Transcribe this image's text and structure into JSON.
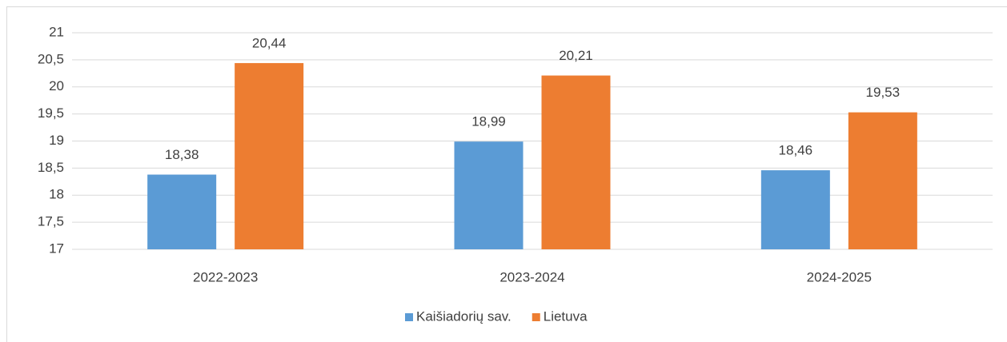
{
  "chart_data": {
    "type": "bar",
    "categories": [
      "2022-2023",
      "2023-2024",
      "2024-2025"
    ],
    "series": [
      {
        "name": "Kaišiadorių sav.",
        "color": "#5b9bd5",
        "values": [
          18.38,
          18.99,
          18.46
        ],
        "value_labels": [
          "18,38",
          "18,99",
          "18,46"
        ]
      },
      {
        "name": "Lietuva",
        "color": "#ed7d31",
        "values": [
          20.44,
          20.21,
          19.53
        ],
        "value_labels": [
          "20,44",
          "20,21",
          "19,53"
        ]
      }
    ],
    "ylim": [
      17,
      21
    ],
    "yticks": [
      17,
      {
        "value": 17.5,
        "label": "17,5"
      },
      18,
      {
        "value": 18.5,
        "label": "18,5"
      },
      19,
      {
        "value": 19.5,
        "label": "19,5"
      },
      20,
      {
        "value": 20.5,
        "label": "20,5"
      },
      21
    ],
    "grid": true,
    "legend": "bottom"
  }
}
